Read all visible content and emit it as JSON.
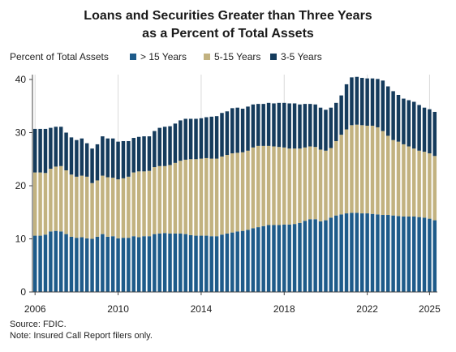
{
  "chart_data": {
    "type": "bar",
    "stacked": true,
    "title_line1": "Loans and Securities Greater than Three Years",
    "title_line2": "as a Percent of Total Assets",
    "ylabel": "Percent of Total Assets",
    "xlabel": "",
    "ylim": [
      0,
      40
    ],
    "yticks": [
      0,
      10,
      20,
      30,
      40
    ],
    "xtick_labels": [
      "2006",
      "2010",
      "2014",
      "2018",
      "2022",
      "2025"
    ],
    "xtick_indices": [
      0,
      16,
      32,
      48,
      64,
      76
    ],
    "vertical_gridlines": true,
    "legend_position": "top",
    "categories": [
      "2006Q1",
      "2006Q2",
      "2006Q3",
      "2006Q4",
      "2007Q1",
      "2007Q2",
      "2007Q3",
      "2007Q4",
      "2008Q1",
      "2008Q2",
      "2008Q3",
      "2008Q4",
      "2009Q1",
      "2009Q2",
      "2009Q3",
      "2009Q4",
      "2010Q1",
      "2010Q2",
      "2010Q3",
      "2010Q4",
      "2011Q1",
      "2011Q2",
      "2011Q3",
      "2011Q4",
      "2012Q1",
      "2012Q2",
      "2012Q3",
      "2012Q4",
      "2013Q1",
      "2013Q2",
      "2013Q3",
      "2013Q4",
      "2014Q1",
      "2014Q2",
      "2014Q3",
      "2014Q4",
      "2015Q1",
      "2015Q2",
      "2015Q3",
      "2015Q4",
      "2016Q1",
      "2016Q2",
      "2016Q3",
      "2016Q4",
      "2017Q1",
      "2017Q2",
      "2017Q3",
      "2017Q4",
      "2018Q1",
      "2018Q2",
      "2018Q3",
      "2018Q4",
      "2019Q1",
      "2019Q2",
      "2019Q3",
      "2019Q4",
      "2020Q1",
      "2020Q2",
      "2020Q3",
      "2020Q4",
      "2021Q1",
      "2021Q2",
      "2021Q3",
      "2021Q4",
      "2022Q1",
      "2022Q2",
      "2022Q3",
      "2022Q4",
      "2023Q1",
      "2023Q2",
      "2023Q3",
      "2023Q4",
      "2024Q1",
      "2024Q2",
      "2024Q3",
      "2024Q4",
      "2025Q1",
      "2025Q2"
    ],
    "series": [
      {
        "name": "> 15 Years",
        "color": "#1e5b8a",
        "values": [
          10.6,
          10.6,
          10.8,
          11.4,
          11.5,
          11.4,
          10.9,
          10.4,
          10.2,
          10.3,
          10.1,
          10.0,
          10.4,
          10.9,
          10.4,
          10.5,
          10.1,
          10.2,
          10.2,
          10.5,
          10.3,
          10.5,
          10.5,
          10.9,
          11.0,
          11.1,
          11.0,
          11.0,
          11.0,
          10.9,
          10.7,
          10.6,
          10.6,
          10.6,
          10.5,
          10.5,
          10.8,
          11.0,
          11.2,
          11.4,
          11.5,
          11.7,
          12.0,
          12.2,
          12.4,
          12.6,
          12.6,
          12.6,
          12.7,
          12.7,
          12.8,
          13.0,
          13.4,
          13.7,
          13.7,
          13.3,
          13.5,
          14.0,
          14.4,
          14.6,
          14.8,
          14.9,
          14.9,
          14.8,
          14.8,
          14.7,
          14.6,
          14.5,
          14.5,
          14.4,
          14.3,
          14.2,
          14.2,
          14.2,
          14.1,
          14.0,
          13.8,
          13.5
        ]
      },
      {
        "name": "5-15 Years",
        "color": "#c2b280",
        "values": [
          11.9,
          11.9,
          11.6,
          11.8,
          12.1,
          12.3,
          12.0,
          11.7,
          11.5,
          11.6,
          11.6,
          10.5,
          10.6,
          11.0,
          11.2,
          11.0,
          11.1,
          11.2,
          11.5,
          12.0,
          12.4,
          12.2,
          12.3,
          12.6,
          12.7,
          12.6,
          12.9,
          13.3,
          13.7,
          14.0,
          14.3,
          14.4,
          14.5,
          14.6,
          14.6,
          14.6,
          14.7,
          14.8,
          14.9,
          14.8,
          14.8,
          14.9,
          15.2,
          15.3,
          15.1,
          14.9,
          14.8,
          14.7,
          14.5,
          14.3,
          14.2,
          14.0,
          13.8,
          13.7,
          13.6,
          13.5,
          13.1,
          13.1,
          14.0,
          15.0,
          15.8,
          16.5,
          16.6,
          16.6,
          16.5,
          16.6,
          16.4,
          15.8,
          14.9,
          14.2,
          14.0,
          13.6,
          13.2,
          12.8,
          12.5,
          12.4,
          12.3,
          12.1
        ]
      },
      {
        "name": "3-5 Years",
        "color": "#153b5c",
        "values": [
          8.2,
          8.2,
          8.3,
          7.7,
          7.5,
          7.4,
          7.1,
          7.0,
          6.9,
          7.0,
          6.3,
          6.5,
          6.8,
          7.4,
          7.3,
          7.4,
          7.1,
          7.0,
          6.7,
          6.5,
          6.5,
          6.6,
          6.5,
          6.8,
          7.2,
          7.4,
          7.3,
          7.4,
          7.6,
          7.7,
          7.6,
          7.6,
          7.6,
          7.7,
          7.9,
          8.0,
          8.2,
          8.2,
          8.5,
          8.5,
          8.2,
          8.3,
          8.1,
          7.9,
          7.9,
          8.1,
          8.1,
          8.3,
          8.4,
          8.5,
          8.5,
          8.3,
          8.2,
          8.0,
          8.0,
          7.9,
          7.7,
          7.6,
          7.2,
          7.4,
          8.5,
          9.0,
          9.0,
          8.9,
          8.9,
          8.9,
          9.1,
          9.5,
          9.3,
          9.2,
          8.8,
          8.6,
          8.7,
          8.8,
          8.6,
          8.3,
          8.3,
          8.3
        ]
      }
    ]
  },
  "notes": {
    "source": "Source: FDIC.",
    "note": "Note: Insured Call Report filers only."
  }
}
